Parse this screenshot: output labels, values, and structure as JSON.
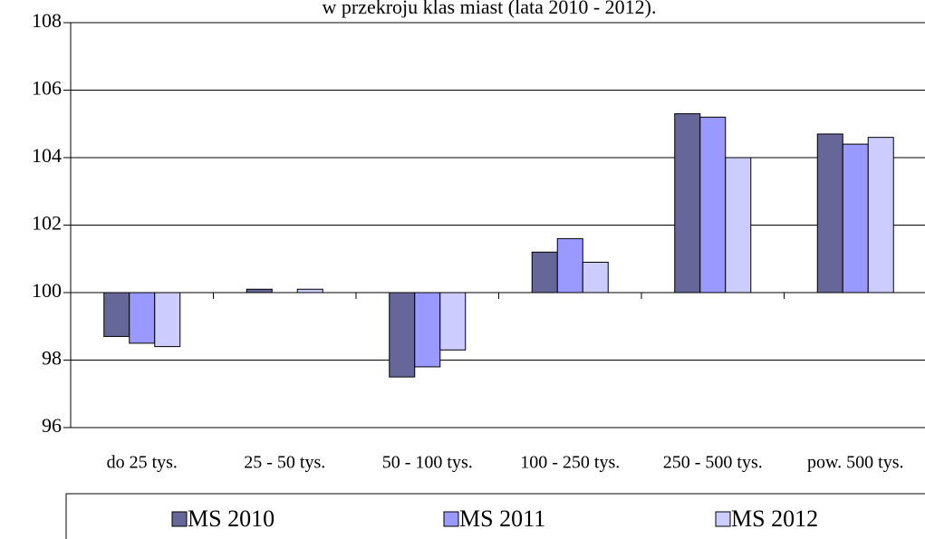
{
  "chart_data": {
    "type": "bar",
    "title": "w przekroju klas miast (lata 2010 - 2012).",
    "categories": [
      "do 25 tys.",
      "25 - 50 tys.",
      "50 - 100 tys.",
      "100 - 250 tys.",
      "250 - 500 tys.",
      "pow. 500 tys."
    ],
    "series": [
      {
        "name": "MS 2010",
        "color": "#666699",
        "values": [
          98.7,
          100.1,
          97.5,
          101.2,
          105.3,
          104.7
        ]
      },
      {
        "name": "MS 2011",
        "color": "#9999ff",
        "values": [
          98.5,
          100.0,
          97.8,
          101.6,
          105.2,
          104.4
        ]
      },
      {
        "name": "MS 2012",
        "color": "#ccccff",
        "values": [
          98.4,
          100.1,
          98.3,
          100.9,
          104.0,
          104.6
        ]
      }
    ],
    "ylim": [
      96,
      108
    ],
    "yticks": [
      96,
      98,
      100,
      102,
      104,
      106,
      108
    ],
    "grid": true,
    "legend": "bottom"
  }
}
